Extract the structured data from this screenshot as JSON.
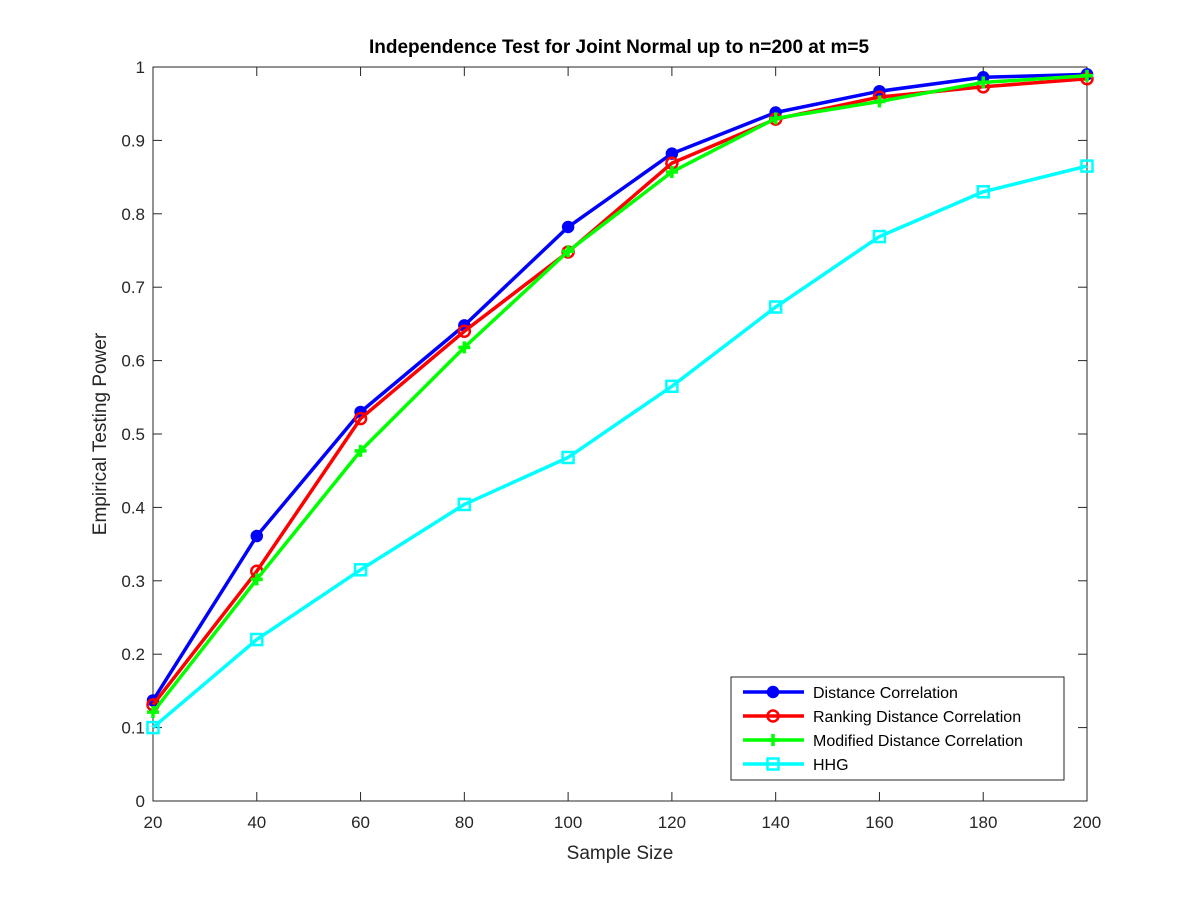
{
  "chart_data": {
    "type": "line",
    "title": "Independence Test for Joint Normal up to n=200 at m=5",
    "xlabel": "Sample Size",
    "ylabel": "Empirical Testing Power",
    "xlim": [
      20,
      200
    ],
    "ylim": [
      0,
      1
    ],
    "x_ticks": [
      20,
      40,
      60,
      80,
      100,
      120,
      140,
      160,
      180,
      200
    ],
    "y_ticks": [
      0,
      0.1,
      0.2,
      0.3,
      0.4,
      0.5,
      0.6,
      0.7,
      0.8,
      0.9,
      1
    ],
    "y_tick_labels": [
      "0",
      "0.1",
      "0.2",
      "0.3",
      "0.4",
      "0.5",
      "0.6",
      "0.7",
      "0.8",
      "0.9",
      "1"
    ],
    "grid": false,
    "legend_position": "bottom-right",
    "x": [
      20,
      40,
      60,
      80,
      100,
      120,
      140,
      160,
      180,
      200
    ],
    "series": [
      {
        "name": "Distance Correlation",
        "color": "#0000ff",
        "marker": "filled-circle",
        "values": [
          0.137,
          0.361,
          0.53,
          0.648,
          0.782,
          0.882,
          0.938,
          0.967,
          0.986,
          0.99
        ]
      },
      {
        "name": "Ranking Distance Correlation",
        "color": "#ff0000",
        "marker": "open-circle",
        "values": [
          0.131,
          0.313,
          0.521,
          0.64,
          0.748,
          0.869,
          0.929,
          0.959,
          0.973,
          0.984
        ]
      },
      {
        "name": "Modified Distance Correlation",
        "color": "#00ff00",
        "marker": "plus",
        "values": [
          0.121,
          0.302,
          0.477,
          0.618,
          0.749,
          0.857,
          0.93,
          0.953,
          0.979,
          0.988
        ]
      },
      {
        "name": "HHG",
        "color": "#00ffff",
        "marker": "square",
        "values": [
          0.1,
          0.22,
          0.315,
          0.404,
          0.468,
          0.565,
          0.673,
          0.769,
          0.83,
          0.865
        ]
      }
    ]
  }
}
